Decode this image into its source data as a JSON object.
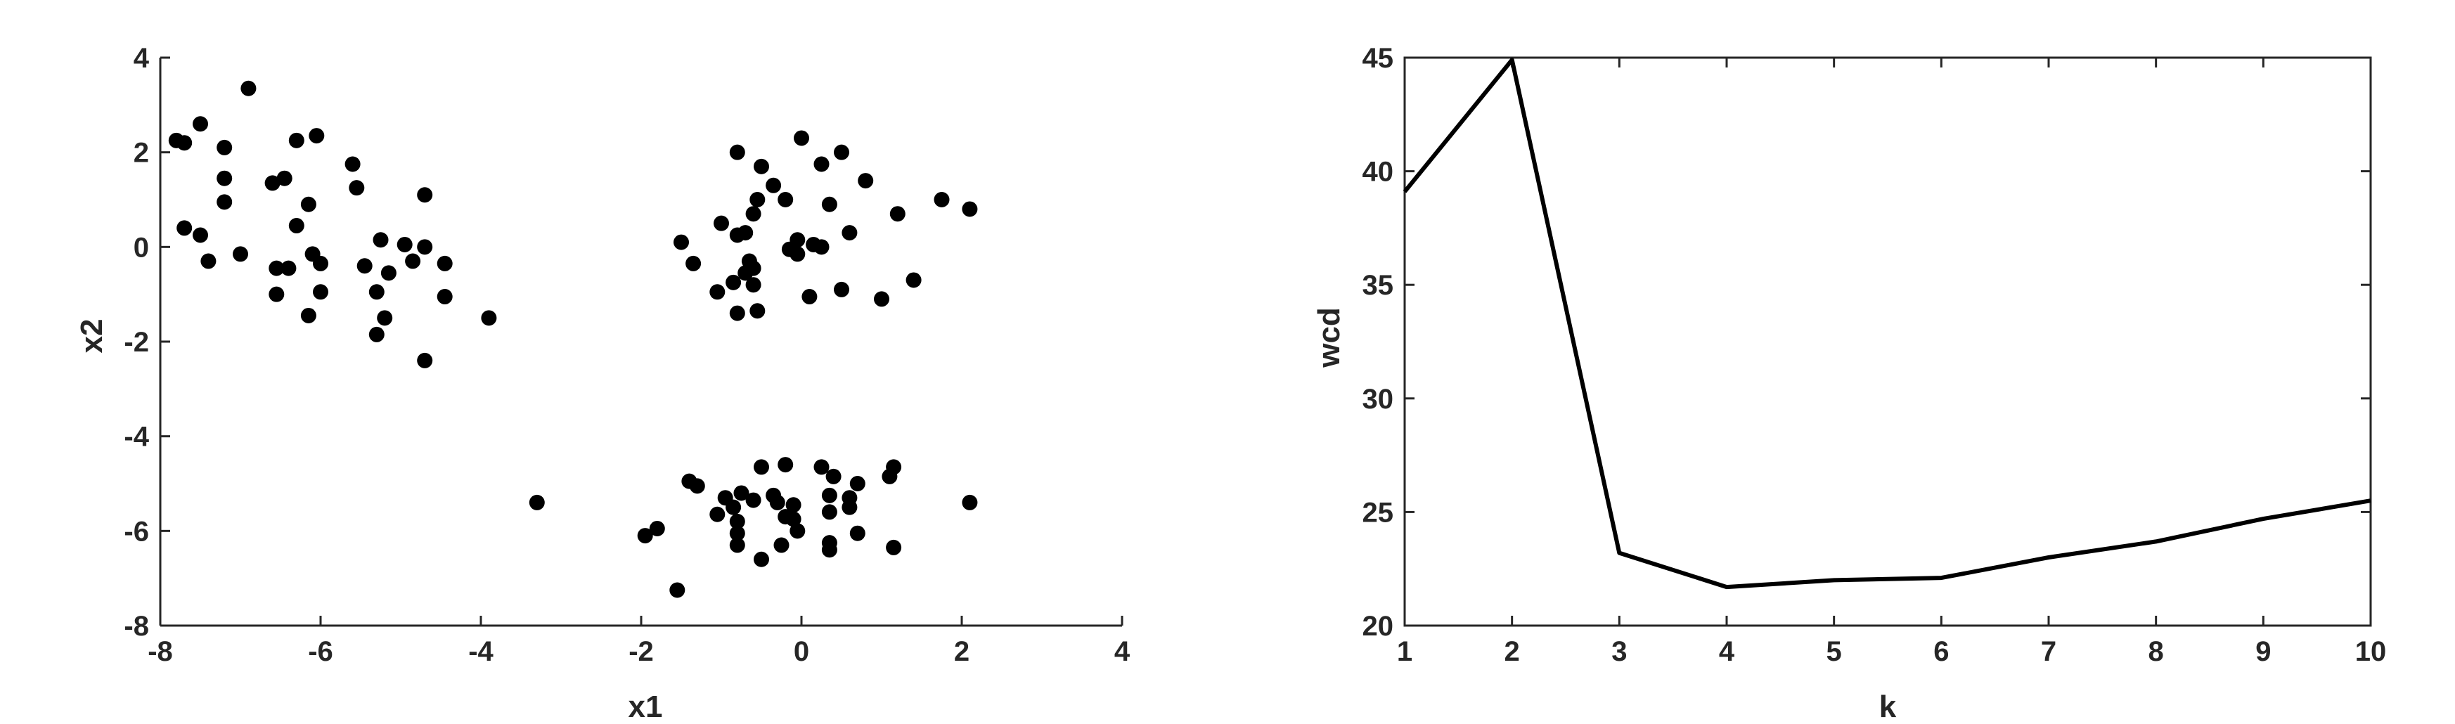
{
  "chart_data": [
    {
      "type": "scatter",
      "title": "",
      "xlabel": "x1",
      "ylabel": "x2",
      "xlim": [
        -8,
        4
      ],
      "ylim": [
        -8,
        4
      ],
      "xticks": [
        "-8",
        "-6",
        "-4",
        "-2",
        "0",
        "2",
        "4"
      ],
      "yticks": [
        "4",
        "2",
        "0",
        "-2",
        "-4",
        "-6",
        "-8"
      ],
      "grid": false,
      "marker_color": "#000000",
      "points": [
        [
          -7.8,
          2.25
        ],
        [
          -7.7,
          2.2
        ],
        [
          -7.5,
          2.6
        ],
        [
          -6.9,
          3.35
        ],
        [
          -7.2,
          2.1
        ],
        [
          -7.2,
          1.45
        ],
        [
          -7.2,
          0.95
        ],
        [
          -7.7,
          0.4
        ],
        [
          -7.5,
          0.25
        ],
        [
          -7.4,
          -0.3
        ],
        [
          -7.0,
          -0.15
        ],
        [
          -6.6,
          1.35
        ],
        [
          -6.45,
          1.45
        ],
        [
          -6.3,
          2.25
        ],
        [
          -6.05,
          2.35
        ],
        [
          -6.15,
          0.9
        ],
        [
          -6.3,
          0.45
        ],
        [
          -6.55,
          -0.45
        ],
        [
          -6.4,
          -0.45
        ],
        [
          -6.55,
          -1.0
        ],
        [
          -6.1,
          -0.15
        ],
        [
          -6.0,
          -0.35
        ],
        [
          -6.0,
          -0.95
        ],
        [
          -6.15,
          -1.45
        ],
        [
          -5.6,
          1.75
        ],
        [
          -5.55,
          1.25
        ],
        [
          -5.45,
          -0.4
        ],
        [
          -5.25,
          0.15
        ],
        [
          -5.15,
          -0.55
        ],
        [
          -5.3,
          -0.95
        ],
        [
          -5.2,
          -1.5
        ],
        [
          -5.3,
          -1.85
        ],
        [
          -4.95,
          0.05
        ],
        [
          -4.85,
          -0.3
        ],
        [
          -4.7,
          0.0
        ],
        [
          -4.7,
          1.1
        ],
        [
          -4.45,
          -0.35
        ],
        [
          -4.45,
          -1.05
        ],
        [
          -4.7,
          -2.4
        ],
        [
          -3.9,
          -1.5
        ],
        [
          0.0,
          2.3
        ],
        [
          0.5,
          2.0
        ],
        [
          -0.8,
          2.0
        ],
        [
          -0.5,
          1.7
        ],
        [
          0.25,
          1.75
        ],
        [
          0.8,
          1.4
        ],
        [
          1.75,
          1.0
        ],
        [
          2.1,
          0.8
        ],
        [
          1.2,
          0.7
        ],
        [
          -0.35,
          1.3
        ],
        [
          -0.55,
          1.0
        ],
        [
          -0.2,
          1.0
        ],
        [
          0.35,
          0.9
        ],
        [
          -1.0,
          0.5
        ],
        [
          -0.6,
          0.7
        ],
        [
          0.6,
          0.3
        ],
        [
          -0.8,
          0.25
        ],
        [
          -0.7,
          0.3
        ],
        [
          -1.5,
          0.1
        ],
        [
          -0.05,
          0.15
        ],
        [
          0.15,
          0.05
        ],
        [
          0.25,
          0.0
        ],
        [
          -0.15,
          -0.05
        ],
        [
          -0.05,
          -0.15
        ],
        [
          -1.35,
          -0.35
        ],
        [
          -0.65,
          -0.3
        ],
        [
          -0.6,
          -0.45
        ],
        [
          -0.7,
          -0.55
        ],
        [
          -0.85,
          -0.75
        ],
        [
          -0.6,
          -0.8
        ],
        [
          -1.05,
          -0.95
        ],
        [
          -0.55,
          -1.35
        ],
        [
          -0.8,
          -1.4
        ],
        [
          0.1,
          -1.05
        ],
        [
          0.5,
          -0.9
        ],
        [
          1.0,
          -1.1
        ],
        [
          1.4,
          -0.7
        ],
        [
          -3.3,
          -5.4
        ],
        [
          -1.95,
          -6.1
        ],
        [
          -1.8,
          -5.95
        ],
        [
          -1.55,
          -7.25
        ],
        [
          -1.4,
          -4.95
        ],
        [
          -1.3,
          -5.05
        ],
        [
          -1.05,
          -5.65
        ],
        [
          -0.95,
          -5.3
        ],
        [
          -0.85,
          -5.5
        ],
        [
          -0.75,
          -5.2
        ],
        [
          -0.8,
          -5.8
        ],
        [
          -0.8,
          -6.05
        ],
        [
          -0.8,
          -6.3
        ],
        [
          -0.6,
          -5.35
        ],
        [
          -0.5,
          -4.65
        ],
        [
          -0.5,
          -6.6
        ],
        [
          -0.35,
          -5.25
        ],
        [
          -0.3,
          -5.4
        ],
        [
          -0.2,
          -4.6
        ],
        [
          -0.25,
          -6.3
        ],
        [
          -0.2,
          -5.7
        ],
        [
          -0.1,
          -5.45
        ],
        [
          -0.1,
          -5.75
        ],
        [
          -0.05,
          -6.0
        ],
        [
          0.25,
          -4.65
        ],
        [
          0.35,
          -5.25
        ],
        [
          0.35,
          -5.6
        ],
        [
          0.35,
          -6.25
        ],
        [
          0.35,
          -6.4
        ],
        [
          0.4,
          -4.85
        ],
        [
          0.6,
          -5.3
        ],
        [
          0.6,
          -5.5
        ],
        [
          0.7,
          -5.0
        ],
        [
          0.7,
          -6.05
        ],
        [
          1.1,
          -4.85
        ],
        [
          1.15,
          -4.65
        ],
        [
          1.15,
          -6.35
        ],
        [
          2.1,
          -5.4
        ]
      ]
    },
    {
      "type": "line",
      "title": "",
      "xlabel": "k",
      "ylabel": "wcd",
      "xlim": [
        1,
        10
      ],
      "ylim": [
        20,
        45
      ],
      "xticks": [
        "1",
        "2",
        "3",
        "4",
        "5",
        "6",
        "7",
        "8",
        "9",
        "10"
      ],
      "yticks": [
        "45",
        "40",
        "35",
        "30",
        "25",
        "20"
      ],
      "grid": false,
      "line_color": "#000000",
      "x": [
        1,
        2,
        3,
        4,
        5,
        6,
        7,
        8,
        9,
        10
      ],
      "y": [
        39.1,
        44.9,
        23.2,
        21.7,
        22.0,
        22.1,
        23.0,
        23.7,
        24.7,
        25.5
      ]
    }
  ]
}
